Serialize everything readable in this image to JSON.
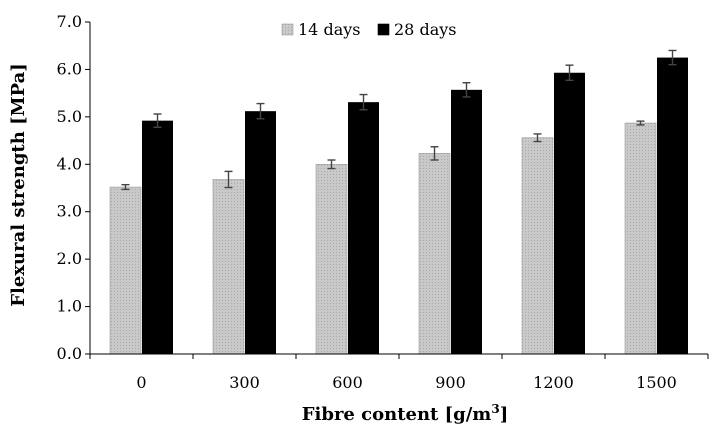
{
  "chart_data": {
    "type": "bar",
    "title": "",
    "xlabel": "Fibre content [g/m",
    "xlabel_sup": "3",
    "xlabel_end": "]",
    "ylabel": "Flexural strength [MPa]",
    "categories": [
      "0",
      "300",
      "600",
      "900",
      "1200",
      "1500"
    ],
    "ylim": [
      0.0,
      7.0
    ],
    "yticks": [
      "0.0",
      "1.0",
      "2.0",
      "3.0",
      "4.0",
      "5.0",
      "6.0",
      "7.0"
    ],
    "legend_position": "top",
    "series": [
      {
        "name": "14 days",
        "color": "#c8c8c8",
        "values": [
          3.52,
          3.68,
          4.0,
          4.23,
          4.56,
          4.87
        ],
        "errors": [
          0.05,
          0.17,
          0.09,
          0.14,
          0.08,
          0.04
        ]
      },
      {
        "name": "28 days",
        "color": "#000000",
        "values": [
          4.92,
          5.12,
          5.31,
          5.57,
          5.93,
          6.25
        ],
        "errors": [
          0.14,
          0.16,
          0.16,
          0.15,
          0.16,
          0.15
        ]
      }
    ]
  }
}
